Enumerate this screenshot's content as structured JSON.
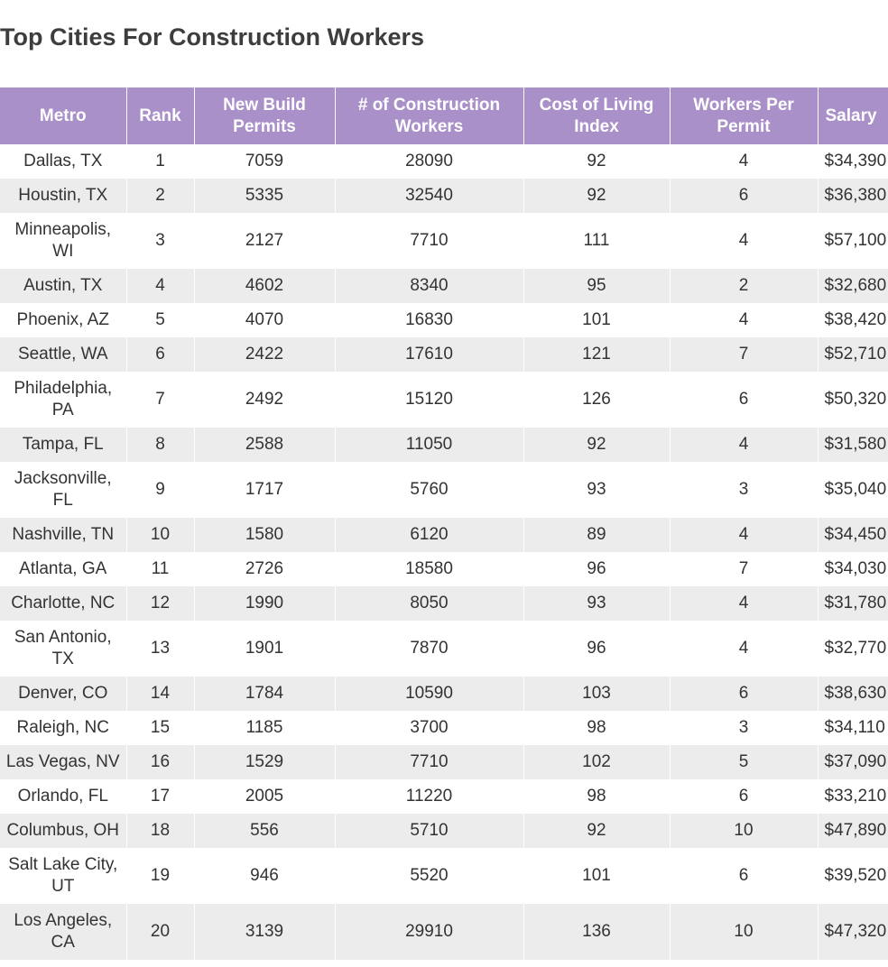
{
  "title": "Top Cities For Construction Workers",
  "columns": [
    "Metro",
    "Rank",
    "New Build Permits",
    "# of Construction Workers",
    "Cost of Living Index",
    "Workers Per Permit",
    "Salary"
  ],
  "rows": [
    {
      "metro": "Dallas, TX",
      "rank": "1",
      "permits": "7059",
      "workers": "28090",
      "col": "92",
      "wpp": "4",
      "salary": "$34,390"
    },
    {
      "metro": "Houstin, TX",
      "rank": "2",
      "permits": "5335",
      "workers": "32540",
      "col": "92",
      "wpp": "6",
      "salary": "$36,380"
    },
    {
      "metro": "Minneapolis, WI",
      "rank": "3",
      "permits": "2127",
      "workers": "7710",
      "col": "111",
      "wpp": "4",
      "salary": "$57,100"
    },
    {
      "metro": "Austin, TX",
      "rank": "4",
      "permits": "4602",
      "workers": "8340",
      "col": "95",
      "wpp": "2",
      "salary": "$32,680"
    },
    {
      "metro": "Phoenix, AZ",
      "rank": "5",
      "permits": "4070",
      "workers": "16830",
      "col": "101",
      "wpp": "4",
      "salary": "$38,420"
    },
    {
      "metro": "Seattle, WA",
      "rank": "6",
      "permits": "2422",
      "workers": "17610",
      "col": "121",
      "wpp": "7",
      "salary": "$52,710"
    },
    {
      "metro": "Philadelphia, PA",
      "rank": "7",
      "permits": "2492",
      "workers": "15120",
      "col": "126",
      "wpp": "6",
      "salary": "$50,320"
    },
    {
      "metro": "Tampa, FL",
      "rank": "8",
      "permits": "2588",
      "workers": "11050",
      "col": "92",
      "wpp": "4",
      "salary": "$31,580"
    },
    {
      "metro": "Jacksonville, FL",
      "rank": "9",
      "permits": "1717",
      "workers": "5760",
      "col": "93",
      "wpp": "3",
      "salary": "$35,040"
    },
    {
      "metro": "Nashville, TN",
      "rank": "10",
      "permits": "1580",
      "workers": "6120",
      "col": "89",
      "wpp": "4",
      "salary": "$34,450"
    },
    {
      "metro": "Atlanta, GA",
      "rank": "11",
      "permits": "2726",
      "workers": "18580",
      "col": "96",
      "wpp": "7",
      "salary": "$34,030"
    },
    {
      "metro": "Charlotte, NC",
      "rank": "12",
      "permits": "1990",
      "workers": "8050",
      "col": "93",
      "wpp": "4",
      "salary": "$31,780"
    },
    {
      "metro": "San Antonio, TX",
      "rank": "13",
      "permits": "1901",
      "workers": "7870",
      "col": "96",
      "wpp": "4",
      "salary": "$32,770"
    },
    {
      "metro": "Denver, CO",
      "rank": "14",
      "permits": "1784",
      "workers": "10590",
      "col": "103",
      "wpp": "6",
      "salary": "$38,630"
    },
    {
      "metro": "Raleigh, NC",
      "rank": "15",
      "permits": "1185",
      "workers": "3700",
      "col": "98",
      "wpp": "3",
      "salary": "$34,110"
    },
    {
      "metro": "Las Vegas, NV",
      "rank": "16",
      "permits": "1529",
      "workers": "7710",
      "col": "102",
      "wpp": "5",
      "salary": "$37,090"
    },
    {
      "metro": "Orlando, FL",
      "rank": "17",
      "permits": "2005",
      "workers": "11220",
      "col": "98",
      "wpp": "6",
      "salary": "$33,210"
    },
    {
      "metro": "Columbus, OH",
      "rank": "18",
      "permits": "556",
      "workers": "5710",
      "col": "92",
      "wpp": "10",
      "salary": "$47,890"
    },
    {
      "metro": "Salt Lake City, UT",
      "rank": "19",
      "permits": "946",
      "workers": "5520",
      "col": "101",
      "wpp": "6",
      "salary": "$39,520"
    },
    {
      "metro": "Los Angeles, CA",
      "rank": "20",
      "permits": "3139",
      "workers": "29910",
      "col": "136",
      "wpp": "10",
      "salary": "$47,320"
    }
  ],
  "colors": {
    "header_bg": "#a990c8",
    "header_text": "#ffffff",
    "row_alt_bg": "#ececec",
    "text": "#333333"
  }
}
